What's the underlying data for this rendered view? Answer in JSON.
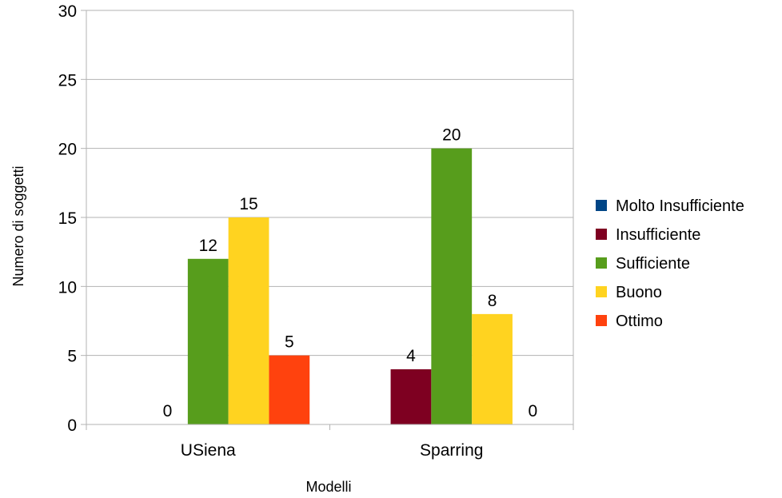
{
  "chart_data": {
    "type": "bar",
    "title": "",
    "xlabel": "Modelli",
    "ylabel": "Numero di soggetti",
    "ylim": [
      0,
      30
    ],
    "yticks": [
      0,
      5,
      10,
      15,
      20,
      25,
      30
    ],
    "grid": true,
    "legend_position": "right",
    "categories": [
      "USiena",
      "Sparring"
    ],
    "series": [
      {
        "name": "Molto Insufficiente",
        "color": "#004586",
        "values": [
          0,
          0
        ],
        "labels": [
          "",
          ""
        ]
      },
      {
        "name": "Insufficiente",
        "color": "#7e0021",
        "values": [
          0,
          4
        ],
        "labels": [
          "0",
          "4"
        ]
      },
      {
        "name": "Sufficiente",
        "color": "#579d1c",
        "values": [
          12,
          20
        ],
        "labels": [
          "12",
          "20"
        ]
      },
      {
        "name": "Buono",
        "color": "#ffd320",
        "values": [
          15,
          8
        ],
        "labels": [
          "15",
          "8"
        ]
      },
      {
        "name": "Ottimo",
        "color": "#ff420e",
        "values": [
          5,
          0
        ],
        "labels": [
          "5",
          "0"
        ]
      }
    ]
  }
}
